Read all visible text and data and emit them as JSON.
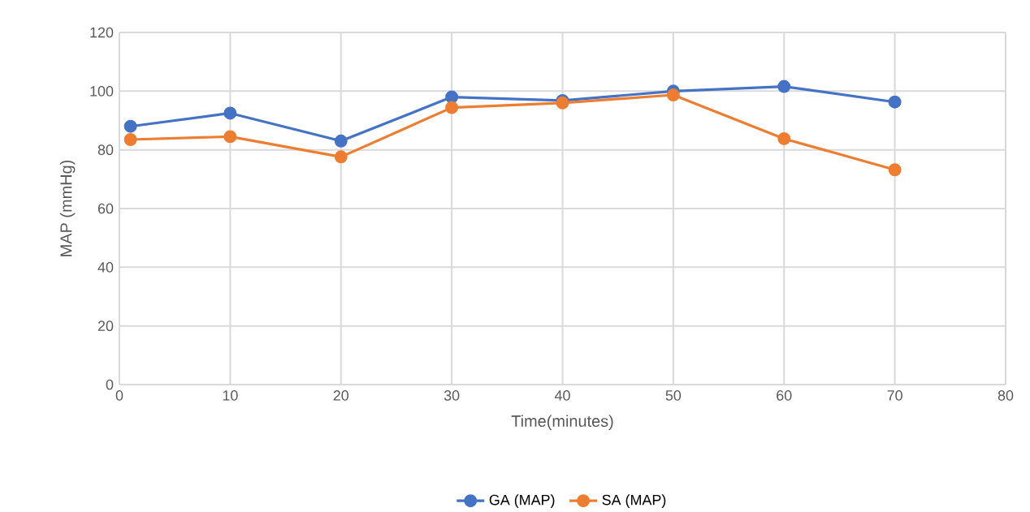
{
  "chart_data": {
    "type": "line",
    "xlabel": "Time(minutes)",
    "ylabel": "MAP (mmHg)",
    "x": [
      1,
      10,
      20,
      30,
      40,
      50,
      60,
      70
    ],
    "series": [
      {
        "name": "GA (MAP)",
        "color": "#4472c4",
        "values": [
          88,
          92.5,
          83,
          98,
          96.8,
          100,
          101.6,
          96.3
        ]
      },
      {
        "name": "SA (MAP)",
        "color": "#ed7d31",
        "values": [
          83.5,
          84.5,
          77.6,
          94.4,
          96,
          98.7,
          83.8,
          73.2
        ]
      }
    ],
    "xlim": [
      0,
      80
    ],
    "ylim": [
      0,
      120
    ],
    "xticks": [
      0,
      10,
      20,
      30,
      40,
      50,
      60,
      70,
      80
    ],
    "yticks": [
      0,
      20,
      40,
      60,
      80,
      100,
      120
    ],
    "grid": true,
    "legend": "bottom",
    "marker": "circle"
  }
}
